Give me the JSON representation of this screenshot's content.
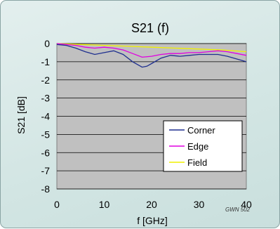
{
  "chart_data": {
    "type": "line",
    "title": "S21 (f)",
    "xlabel": "f [GHz]",
    "ylabel": "S21 [dB]",
    "xlim": [
      0,
      40
    ],
    "ylim": [
      -8,
      0
    ],
    "x_ticks": [
      0,
      10,
      20,
      30,
      40
    ],
    "y_ticks": [
      0,
      -1,
      -2,
      -3,
      -4,
      -5,
      -6,
      -7,
      -8
    ],
    "grid": true,
    "legend_position": "bottom-right",
    "annotation": "GWN 502",
    "plot_background": "#c0c0c0",
    "series": [
      {
        "name": "Corner",
        "color": "#1f2f8f",
        "x": [
          0,
          2,
          4,
          6,
          8,
          10,
          12,
          14,
          16,
          18,
          19,
          20,
          22,
          24,
          26,
          28,
          30,
          32,
          34,
          36,
          38,
          40
        ],
        "y": [
          -0.05,
          -0.1,
          -0.25,
          -0.45,
          -0.6,
          -0.5,
          -0.4,
          -0.6,
          -1.0,
          -1.3,
          -1.25,
          -1.1,
          -0.8,
          -0.65,
          -0.7,
          -0.65,
          -0.6,
          -0.6,
          -0.6,
          -0.7,
          -0.85,
          -1.0
        ]
      },
      {
        "name": "Edge",
        "color": "#e000e0",
        "x": [
          0,
          2,
          4,
          6,
          8,
          10,
          12,
          14,
          16,
          18,
          20,
          22,
          24,
          26,
          28,
          30,
          32,
          34,
          36,
          38,
          40
        ],
        "y": [
          0,
          -0.05,
          -0.1,
          -0.2,
          -0.25,
          -0.2,
          -0.25,
          -0.35,
          -0.55,
          -0.75,
          -0.7,
          -0.6,
          -0.55,
          -0.55,
          -0.5,
          -0.5,
          -0.45,
          -0.4,
          -0.45,
          -0.55,
          -0.65
        ]
      },
      {
        "name": "Field",
        "color": "#f0f000",
        "x": [
          0,
          5,
          10,
          15,
          20,
          25,
          30,
          35,
          40
        ],
        "y": [
          0,
          -0.05,
          -0.1,
          -0.15,
          -0.2,
          -0.25,
          -0.3,
          -0.35,
          -0.45
        ]
      }
    ]
  }
}
